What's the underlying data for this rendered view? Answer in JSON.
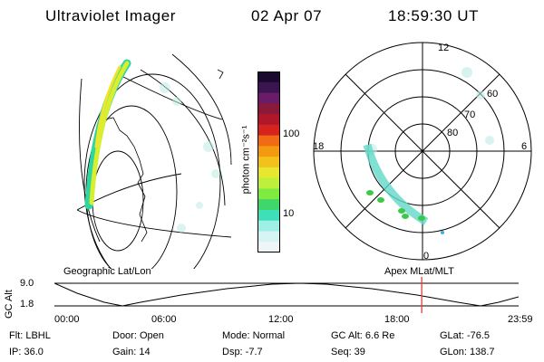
{
  "header": {
    "instrument": "Ultraviolet Imager",
    "date": "02 Apr 07",
    "time": "18:59:30 UT"
  },
  "colorbar": {
    "unit_label": "photon cm⁻²s⁻¹",
    "ticks": [
      "100",
      "10"
    ],
    "colors": [
      "#1a0a2e",
      "#3a1550",
      "#6a1c6a",
      "#8b1a3a",
      "#b0182a",
      "#d6231d",
      "#f06b13",
      "#f39a10",
      "#f3c11c",
      "#e8e62e",
      "#bdf03a",
      "#7fea3f",
      "#3fd66a",
      "#3ee0b8",
      "#9ef0e6",
      "#d6f4f3",
      "#eef6f8"
    ]
  },
  "panels": {
    "left_label": "Geographic Lat/Lon",
    "right_label": "Apex  MLat/MLT",
    "polar_hours": [
      "12",
      "18",
      "6",
      "0"
    ],
    "polar_lats": [
      "60",
      "70",
      "80"
    ]
  },
  "timeline": {
    "yaxis": "GC Alt",
    "ymax": "9.0",
    "ymin": "1.8",
    "xticks": [
      "00:00",
      "06:00",
      "12:00",
      "18:00",
      "23:59"
    ],
    "marker_time_hours": 18.99
  },
  "info": {
    "flt": "Flt: LBHL",
    "door": "Door: Open",
    "mode": "Mode: Normal",
    "gcalt": "GC Alt: 6.6 Re",
    "glat": "GLat: -76.5",
    "ip": "IP: 36.0",
    "gain": "Gain: 14",
    "dsp": "Dsp:    -7.7",
    "seq": "Seq: 39",
    "glon": "GLon: 138.7"
  }
}
